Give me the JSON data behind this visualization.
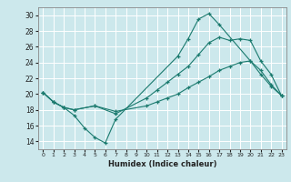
{
  "title": "",
  "xlabel": "Humidex (Indice chaleur)",
  "bg_color": "#cce8ec",
  "line_color": "#1a7a6e",
  "grid_color": "#ffffff",
  "xlim": [
    -0.5,
    23.5
  ],
  "ylim": [
    13.0,
    31.0
  ],
  "yticks": [
    14,
    16,
    18,
    20,
    22,
    24,
    26,
    28,
    30
  ],
  "xticks": [
    0,
    1,
    2,
    3,
    4,
    5,
    6,
    7,
    8,
    9,
    10,
    11,
    12,
    13,
    14,
    15,
    16,
    17,
    18,
    19,
    20,
    21,
    22,
    23
  ],
  "line1_x": [
    0,
    1,
    2,
    3,
    4,
    5,
    6,
    7,
    13,
    14,
    15,
    16,
    17,
    20,
    21,
    22,
    23
  ],
  "line1_y": [
    20.2,
    19.0,
    18.3,
    17.3,
    15.7,
    14.5,
    13.8,
    16.8,
    24.8,
    27.0,
    29.5,
    30.2,
    28.8,
    24.2,
    23.0,
    21.2,
    19.8
  ],
  "line2_x": [
    0,
    1,
    2,
    3,
    5,
    7,
    10,
    11,
    12,
    13,
    14,
    15,
    16,
    17,
    18,
    19,
    20,
    21,
    22,
    23
  ],
  "line2_y": [
    20.2,
    19.0,
    18.3,
    18.0,
    18.5,
    17.5,
    19.5,
    20.5,
    21.5,
    22.5,
    23.5,
    25.0,
    26.5,
    27.2,
    26.8,
    27.0,
    26.8,
    24.2,
    22.5,
    19.8
  ],
  "line3_x": [
    0,
    1,
    2,
    3,
    5,
    7,
    10,
    11,
    12,
    13,
    14,
    15,
    16,
    17,
    18,
    19,
    20,
    21,
    22,
    23
  ],
  "line3_y": [
    20.2,
    19.0,
    18.3,
    18.0,
    18.5,
    17.8,
    18.5,
    19.0,
    19.5,
    20.0,
    20.8,
    21.5,
    22.2,
    23.0,
    23.5,
    24.0,
    24.2,
    22.5,
    21.0,
    19.8
  ]
}
